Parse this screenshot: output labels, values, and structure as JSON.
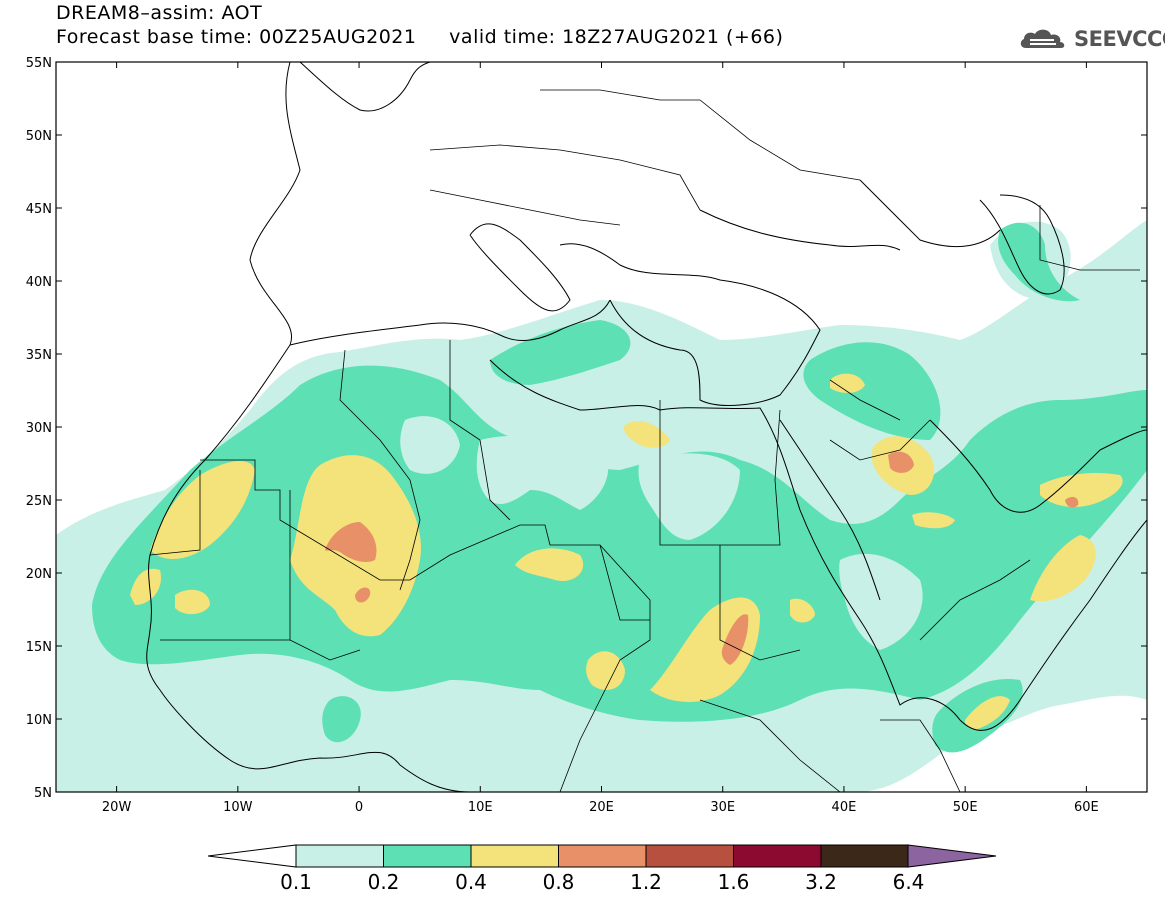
{
  "header": {
    "title_line1": "DREAM8–assim: AOT",
    "title_line2": "Forecast base time: 00Z25AUG2021     valid time: 18Z27AUG2021 (+66)",
    "logo_text": "SEEVCCC"
  },
  "map": {
    "projection": "cylindrical",
    "lon_range": [
      -25,
      65
    ],
    "lat_range": [
      5,
      55
    ],
    "lat_ticks": [
      "5N",
      "10N",
      "15N",
      "20N",
      "25N",
      "30N",
      "35N",
      "40N",
      "45N",
      "50N",
      "55N"
    ],
    "lon_ticks": [
      "20W",
      "10W",
      "0",
      "10E",
      "20E",
      "30E",
      "40E",
      "50E",
      "60E"
    ]
  },
  "colorbar": {
    "labels": [
      "0.1",
      "0.2",
      "0.4",
      "0.8",
      "1.2",
      "1.6",
      "3.2",
      "6.4"
    ],
    "colors": [
      "#ffffff",
      "#c8f0e6",
      "#5ce0b4",
      "#f4e27a",
      "#e89068",
      "#b85040",
      "#8c0a30",
      "#3c2818",
      "#8c64a0"
    ]
  }
}
